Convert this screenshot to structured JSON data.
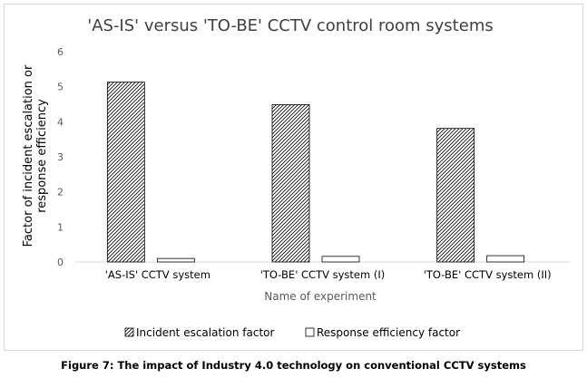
{
  "chart_data": {
    "type": "bar",
    "title": "'AS-IS' versus 'TO-BE' CCTV control room systems",
    "xlabel": "Name of experiment",
    "ylabel_lines": [
      "Factor of incident escalation or",
      "response efficiency"
    ],
    "categories": [
      "'AS-IS' CCTV system",
      "'TO-BE' CCTV system (I)",
      "'TO-BE' CCTV system (II)"
    ],
    "ylim": [
      0,
      6
    ],
    "yticks": [
      0,
      1,
      2,
      3,
      4,
      5,
      6
    ],
    "grid": false,
    "legend_position": "bottom",
    "series": [
      {
        "name": "Incident escalation factor",
        "values": [
          5.13,
          4.49,
          3.81
        ],
        "pattern": "diagonal-hatch",
        "color": "#000000"
      },
      {
        "name": "Response efficiency factor",
        "values": [
          0.1,
          0.16,
          0.18
        ],
        "pattern": "solid-white",
        "color": "#000000"
      }
    ]
  },
  "caption": "Figure 7: The impact of Industry 4.0 technology on conventional CCTV systems"
}
